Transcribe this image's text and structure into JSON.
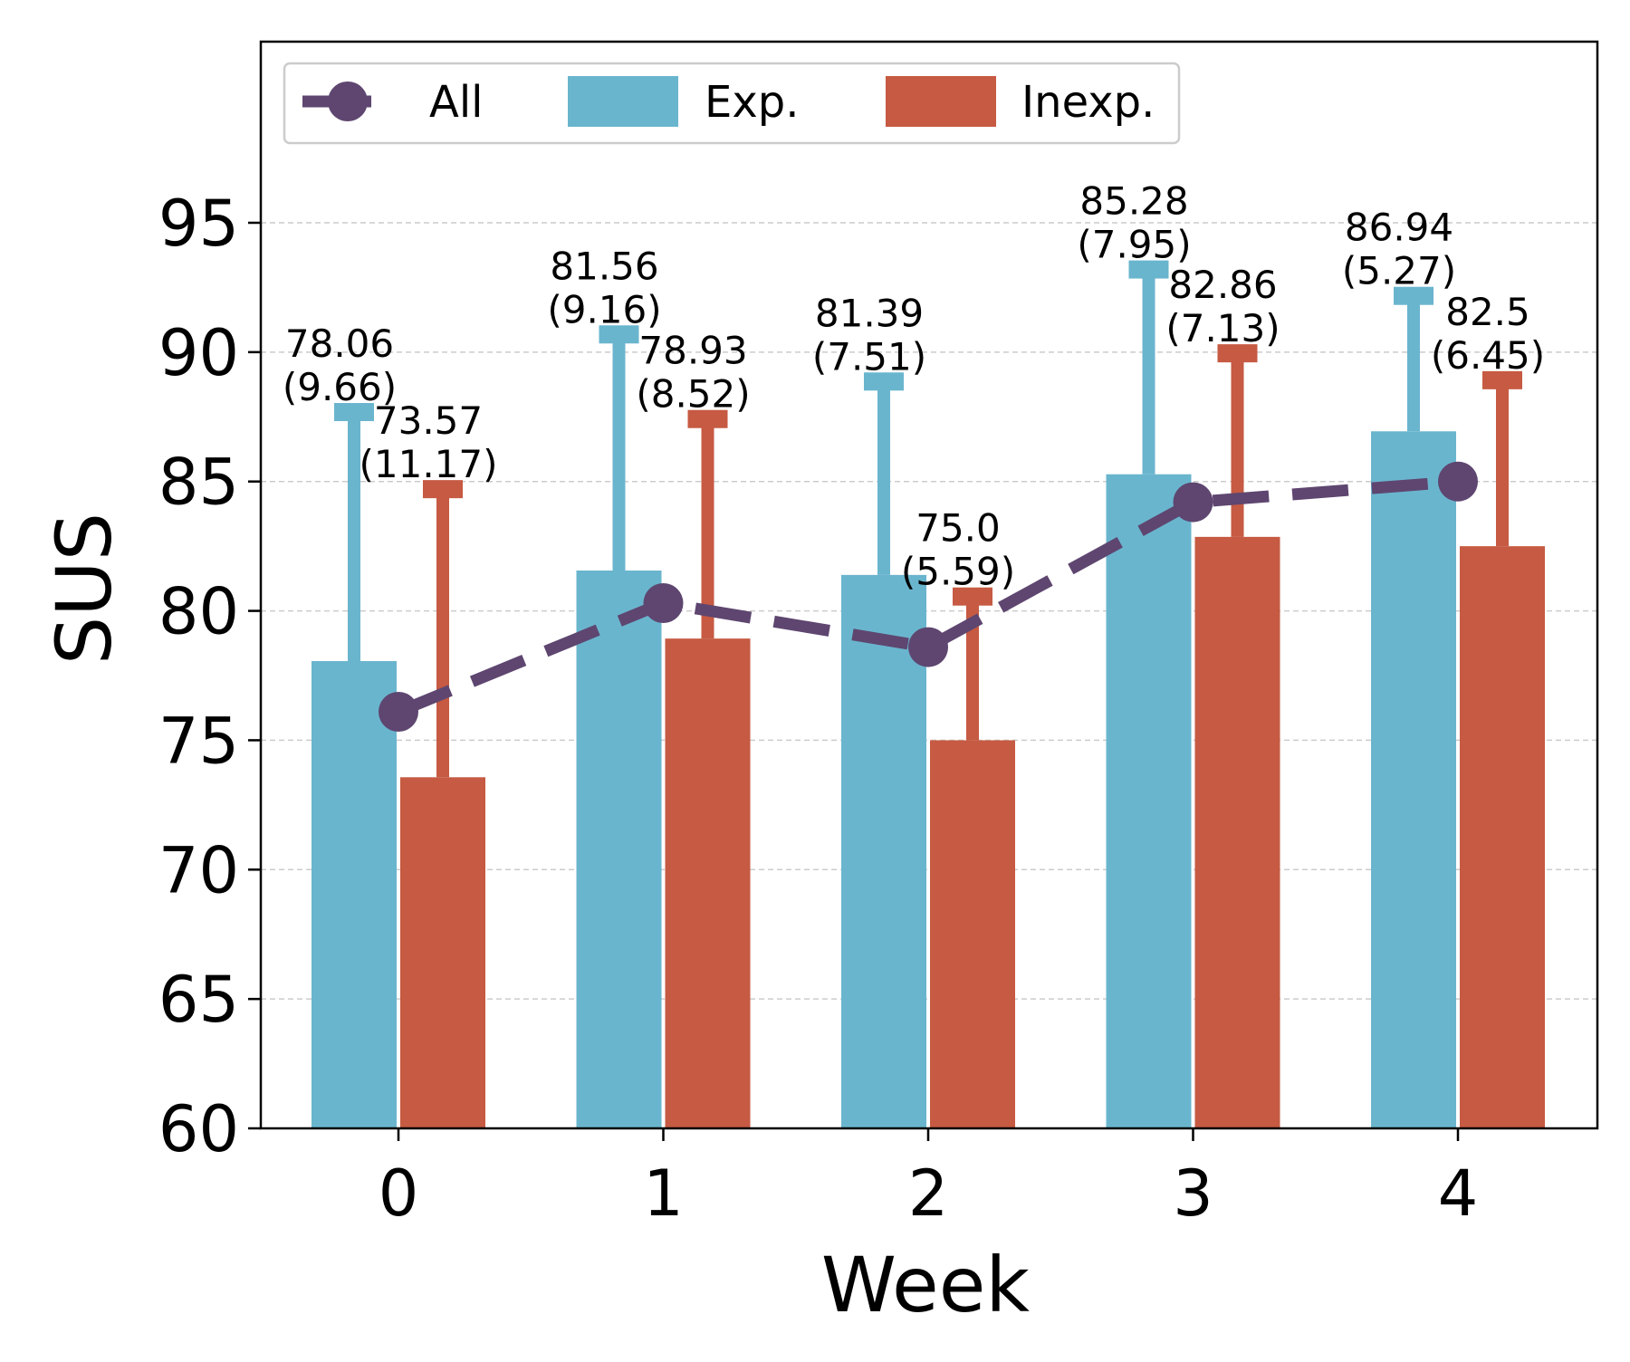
{
  "chart_data": {
    "type": "bar",
    "xlabel": "Week",
    "ylabel": "SUS",
    "ylim": [
      60,
      102
    ],
    "yticks": [
      60,
      65,
      70,
      75,
      80,
      85,
      90,
      95
    ],
    "categories": [
      "0",
      "1",
      "2",
      "3",
      "4"
    ],
    "grid": "horizontal dashed",
    "legend_position": "top-left",
    "series": [
      {
        "name": "Exp.",
        "kind": "bar",
        "color": "#6ab5ce",
        "values": [
          78.06,
          81.56,
          81.39,
          85.28,
          86.94
        ],
        "errors": [
          9.66,
          9.16,
          7.51,
          7.95,
          5.27
        ],
        "labels": [
          {
            "line1": "78.06",
            "line2": "(9.66)"
          },
          {
            "line1": "81.56",
            "line2": "(9.16)"
          },
          {
            "line1": "81.39",
            "line2": "(7.51)"
          },
          {
            "line1": "85.28",
            "line2": "(7.95)"
          },
          {
            "line1": "86.94",
            "line2": "(5.27)"
          }
        ]
      },
      {
        "name": "Inexp.",
        "kind": "bar",
        "color": "#c65a42",
        "values": [
          73.57,
          78.93,
          75.0,
          82.86,
          82.5
        ],
        "errors": [
          11.17,
          8.52,
          5.59,
          7.13,
          6.45
        ],
        "labels": [
          {
            "line1": "73.57",
            "line2": "(11.17)"
          },
          {
            "line1": "78.93",
            "line2": "(8.52)"
          },
          {
            "line1": "75.0",
            "line2": "(5.59)"
          },
          {
            "line1": "82.86",
            "line2": "(7.13)"
          },
          {
            "line1": "82.5",
            "line2": "(6.45)"
          }
        ]
      },
      {
        "name": "All",
        "kind": "line",
        "style": "dashed",
        "marker": "circle",
        "color": "#5e4670",
        "values": [
          76.1,
          80.3,
          78.6,
          84.2,
          85.0
        ]
      }
    ]
  }
}
